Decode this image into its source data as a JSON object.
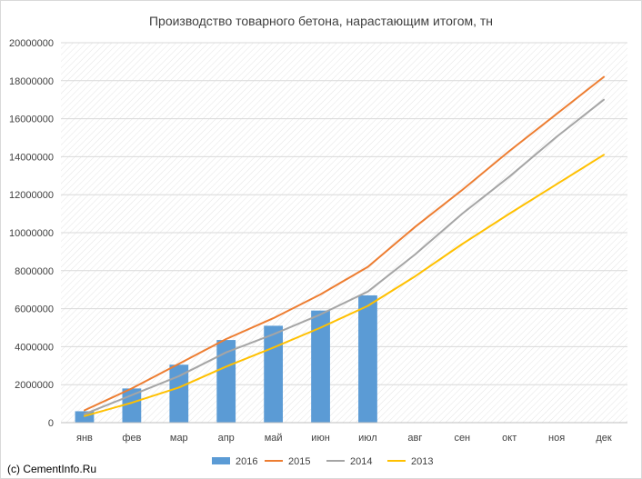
{
  "credit": "(c) CementInfo.Ru",
  "chart_data": {
    "type": "bar",
    "title": "Производство товарного бетона, нарастающим итогом, тн",
    "xlabel": "",
    "ylabel": "",
    "ylim": [
      0,
      20000000
    ],
    "yticks": [
      0,
      2000000,
      4000000,
      6000000,
      8000000,
      10000000,
      12000000,
      14000000,
      16000000,
      18000000,
      20000000
    ],
    "categories": [
      "янв",
      "фев",
      "мар",
      "апр",
      "май",
      "июн",
      "июл",
      "авг",
      "сен",
      "окт",
      "ноя",
      "дек"
    ],
    "grid": true,
    "legend_position": "bottom",
    "series": [
      {
        "name": "2016",
        "type": "bar",
        "color": "#5B9BD5",
        "values": [
          600000,
          1800000,
          3050000,
          4350000,
          5100000,
          5900000,
          6700000,
          null,
          null,
          null,
          null,
          null
        ]
      },
      {
        "name": "2015",
        "type": "line",
        "color": "#ED7D31",
        "values": [
          650000,
          1800000,
          3100000,
          4400000,
          5500000,
          6750000,
          8200000,
          10300000,
          12250000,
          14300000,
          16250000,
          18200000
        ]
      },
      {
        "name": "2014",
        "type": "line",
        "color": "#A5A5A5",
        "values": [
          450000,
          1450000,
          2450000,
          3700000,
          4650000,
          5700000,
          6900000,
          8850000,
          11000000,
          12950000,
          15050000,
          17000000
        ]
      },
      {
        "name": "2013",
        "type": "line",
        "color": "#FFC000",
        "values": [
          350000,
          1050000,
          1850000,
          2950000,
          3950000,
          5000000,
          6150000,
          7700000,
          9400000,
          11000000,
          12550000,
          14100000
        ]
      }
    ]
  }
}
